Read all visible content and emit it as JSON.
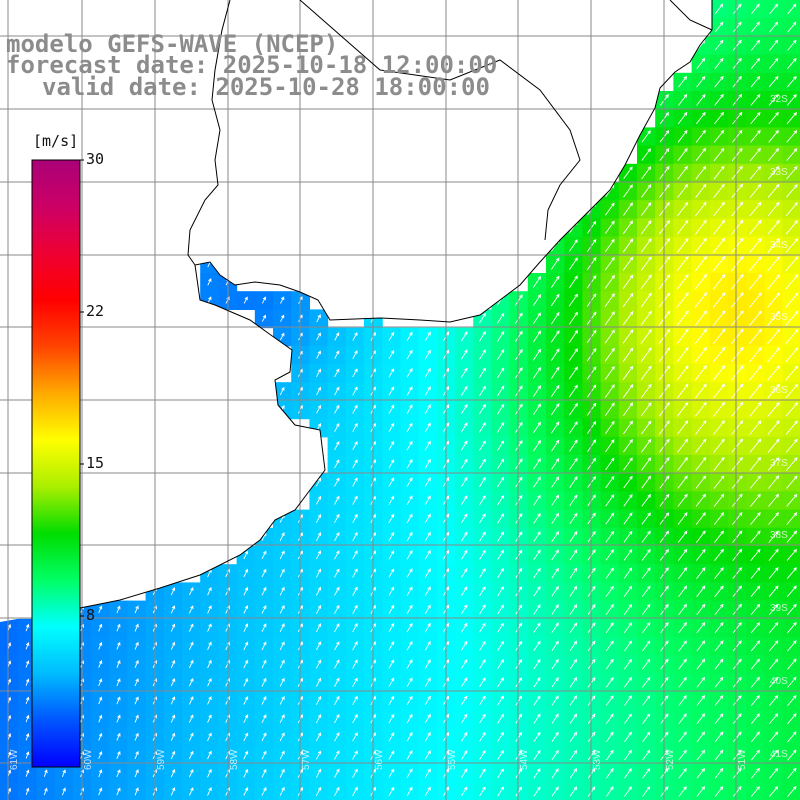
{
  "title": {
    "line1": "modelo GEFS-WAVE (NCEP)",
    "line2": "forecast date: 2025-10-18 12:00:00",
    "line3": "valid date: 2025-10-28 18:00:00"
  },
  "colorbar": {
    "unit": "[m/s]",
    "ticks": [
      "30",
      "22",
      "15",
      "8"
    ],
    "min": 0,
    "max": 30,
    "stops": [
      "#0000ff",
      "#0055ff",
      "#00bbff",
      "#00ffff",
      "#00ff66",
      "#00dd00",
      "#aaee00",
      "#ffff00",
      "#ffaa00",
      "#ff4400",
      "#ff0000",
      "#ee0033",
      "#cc0066",
      "#aa0077"
    ]
  },
  "map": {
    "lat_labels": [
      "32S",
      "33S",
      "34S",
      "35S",
      "36S",
      "37S",
      "38S",
      "39S",
      "40S",
      "41S"
    ],
    "lon_labels": [
      "61W",
      "60W",
      "59W",
      "58W",
      "57W",
      "56W",
      "55W",
      "54W",
      "53W",
      "52W",
      "51W"
    ],
    "land_color": "#ffffff",
    "grid_color": "#888888",
    "coast_color": "#000000",
    "arrow_color": "#ffffff",
    "wind_direction": "southwest-to-northeast"
  }
}
